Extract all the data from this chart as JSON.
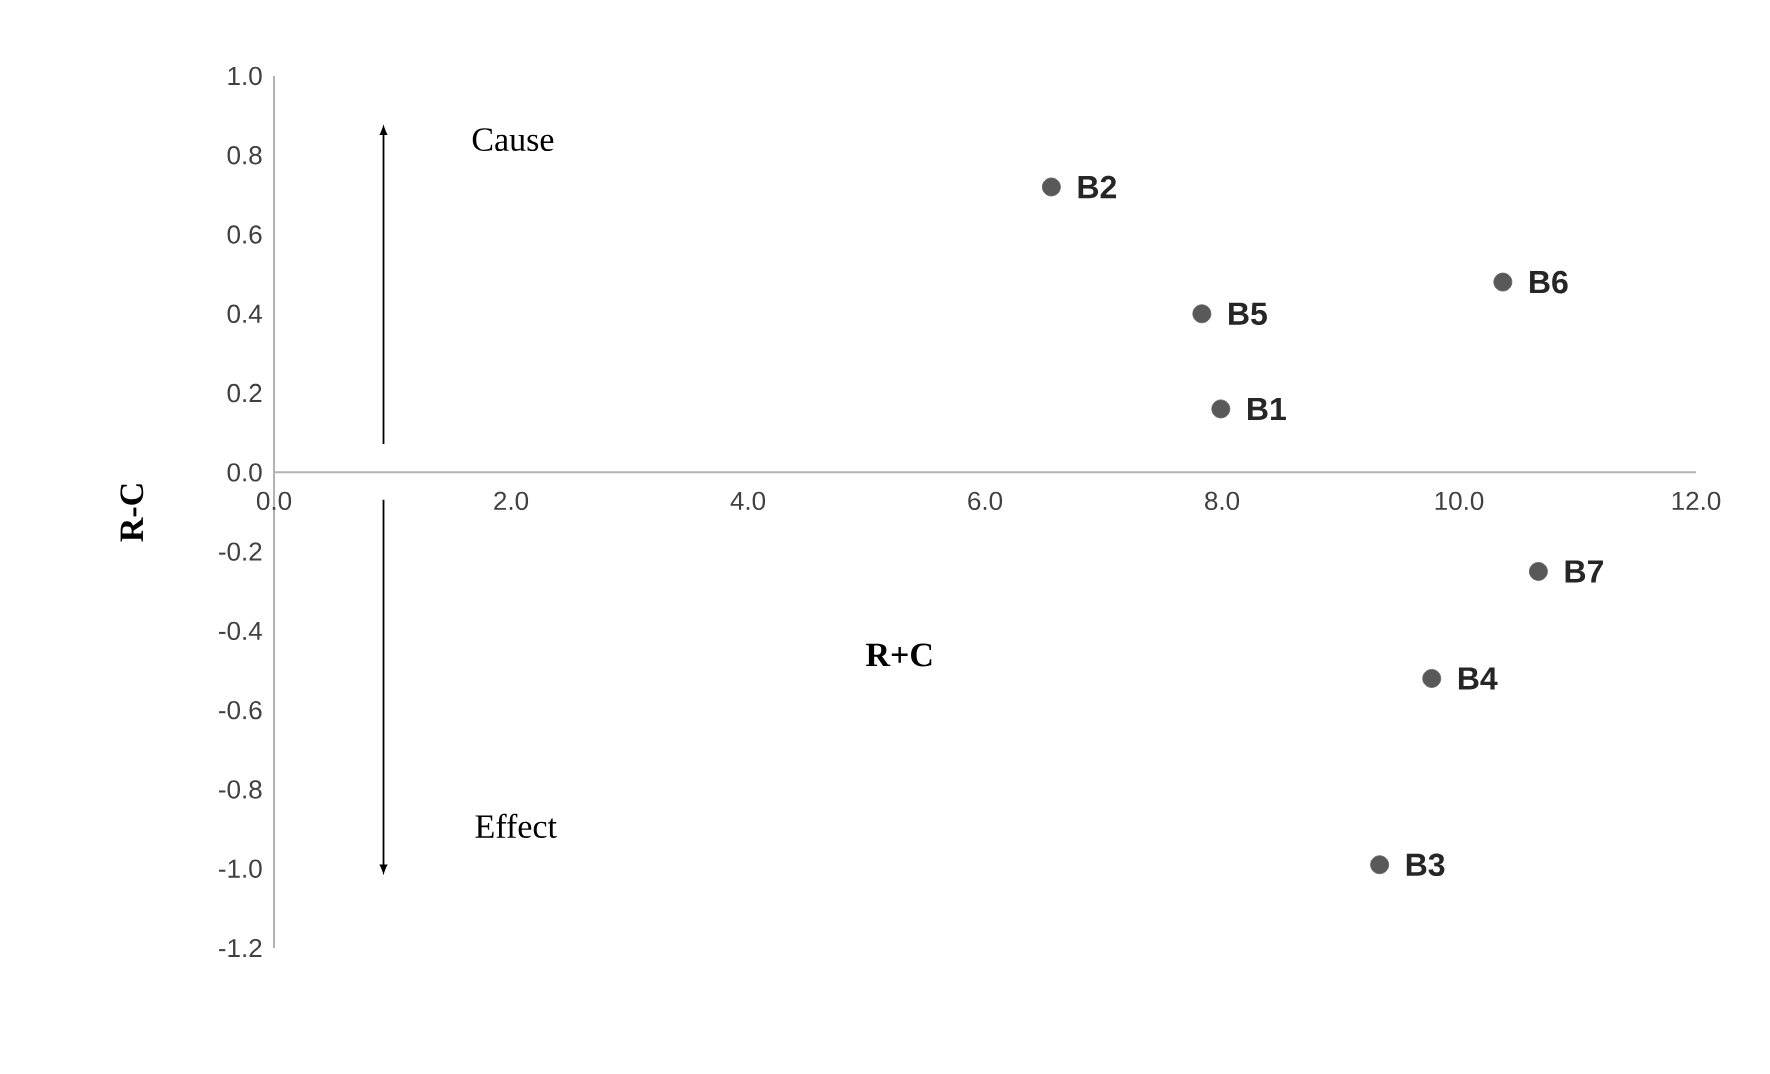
{
  "chart_data": {
    "type": "scatter",
    "xlabel": "R+C",
    "ylabel": "R-C",
    "xlim": [
      0,
      12
    ],
    "ylim": [
      -1.2,
      1.0
    ],
    "xticks": [
      {
        "value": 0,
        "label": "0.0"
      },
      {
        "value": 2,
        "label": "2.0"
      },
      {
        "value": 4,
        "label": "4.0"
      },
      {
        "value": 6,
        "label": "6.0"
      },
      {
        "value": 8,
        "label": "8.0"
      },
      {
        "value": 10,
        "label": "10.0"
      },
      {
        "value": 12,
        "label": "12.0"
      }
    ],
    "yticks": [
      {
        "value": -1.2,
        "label": "-1.2"
      },
      {
        "value": -1.0,
        "label": "-1.0"
      },
      {
        "value": -0.8,
        "label": "-0.8"
      },
      {
        "value": -0.6,
        "label": "-0.6"
      },
      {
        "value": -0.4,
        "label": "-0.4"
      },
      {
        "value": -0.2,
        "label": "-0.2"
      },
      {
        "value": 0,
        "label": "0.0"
      },
      {
        "value": 0.2,
        "label": "0.2"
      },
      {
        "value": 0.4,
        "label": "0.4"
      },
      {
        "value": 0.6,
        "label": "0.6"
      },
      {
        "value": 0.8,
        "label": "0.8"
      },
      {
        "value": 1.0,
        "label": "1.0"
      }
    ],
    "marker": "circle",
    "grid": false,
    "legend": false,
    "annotations": [
      "Cause",
      "Effect"
    ],
    "series": [
      {
        "name": "B1",
        "color": "#595959",
        "x": [
          7.99
        ],
        "values": [
          0.16
        ]
      },
      {
        "name": "B2",
        "color": "#595959",
        "x": [
          6.56
        ],
        "values": [
          0.72
        ]
      },
      {
        "name": "B3",
        "color": "#595959",
        "x": [
          9.33
        ],
        "values": [
          -0.99
        ]
      },
      {
        "name": "B4",
        "color": "#595959",
        "x": [
          9.77
        ],
        "values": [
          -0.52
        ]
      },
      {
        "name": "B5",
        "color": "#595959",
        "x": [
          7.83
        ],
        "values": [
          0.4
        ]
      },
      {
        "name": "B6",
        "color": "#595959",
        "x": [
          10.37
        ],
        "values": [
          0.48
        ]
      },
      {
        "name": "B7",
        "color": "#595959",
        "x": [
          10.67
        ],
        "values": [
          -0.25
        ]
      }
    ]
  }
}
